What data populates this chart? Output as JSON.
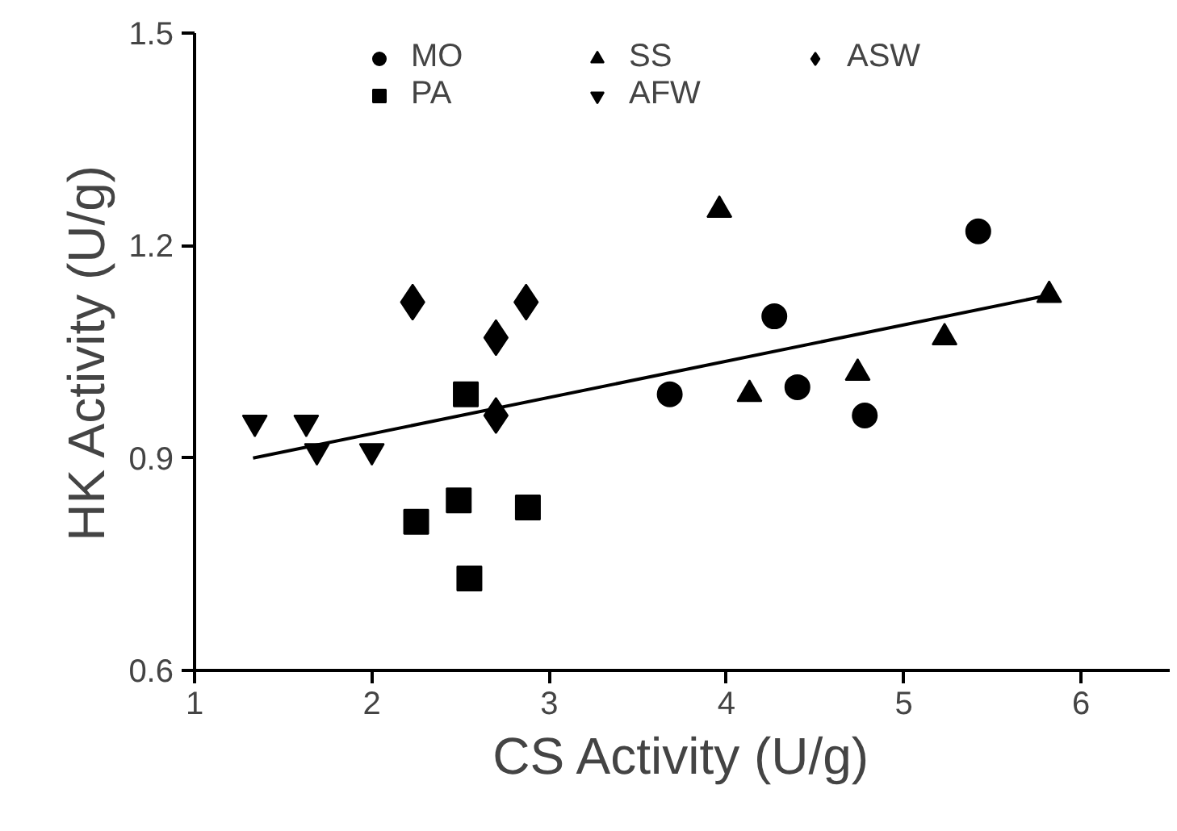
{
  "chart_data": {
    "type": "scatter",
    "xlabel": "CS Activity (U/g)",
    "ylabel": "HK Activity (U/g)",
    "xlim": [
      1,
      6.5
    ],
    "ylim": [
      0.6,
      1.5
    ],
    "xticks": [
      1,
      2,
      3,
      4,
      5,
      6
    ],
    "yticks": [
      0.6,
      0.9,
      1.2,
      1.5
    ],
    "grid": false,
    "legend": "top",
    "series": [
      {
        "name": "MO",
        "color": "#000000",
        "marker": "circle",
        "x": [
          3.68,
          4.27,
          4.4,
          4.78,
          5.42
        ],
        "values": [
          0.99,
          1.1,
          1.0,
          0.96,
          1.22
        ]
      },
      {
        "name": "PA",
        "color": "#000000",
        "marker": "square",
        "x": [
          2.53,
          2.25,
          2.49,
          2.88,
          2.55
        ],
        "values": [
          0.99,
          0.81,
          0.84,
          0.83,
          0.73
        ]
      },
      {
        "name": "SS",
        "color": "#000000",
        "marker": "triangle",
        "x": [
          3.96,
          4.13,
          4.74,
          5.23,
          5.82
        ],
        "values": [
          1.25,
          0.99,
          1.02,
          1.07,
          1.13
        ]
      },
      {
        "name": "AFW",
        "color": "#000000",
        "x": [
          1.34,
          1.63,
          1.69,
          2.0
        ],
        "values": [
          0.95,
          0.95,
          0.91,
          0.91
        ]
      },
      {
        "name": "ASW",
        "color": "#000000",
        "marker": "diamond",
        "x": [
          2.23,
          2.7,
          2.87,
          2.7
        ],
        "values": [
          1.12,
          1.07,
          1.12,
          0.96
        ]
      },
      {
        "type": "line",
        "color": "#000000",
        "line_style": "solid",
        "x": [
          1.33,
          5.82
        ],
        "values": [
          0.9,
          1.13
        ]
      }
    ]
  }
}
